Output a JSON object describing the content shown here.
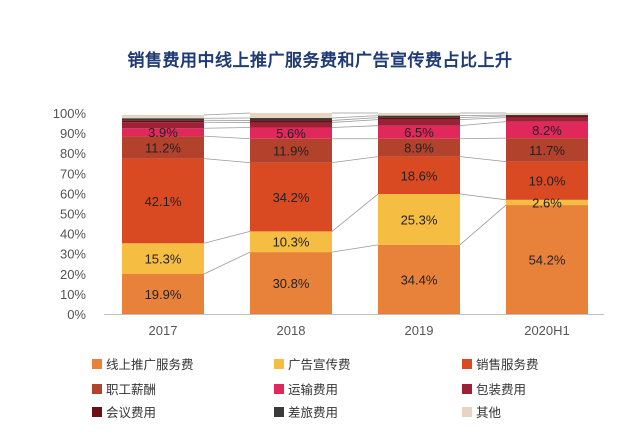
{
  "chart_data": {
    "type": "bar",
    "stacked": true,
    "percent": true,
    "title": "销售费用中线上推广服务费和广告宣传费占比上升",
    "categories": [
      "2017",
      "2018",
      "2019",
      "2020H1"
    ],
    "yticks": [
      "0%",
      "10%",
      "20%",
      "30%",
      "40%",
      "50%",
      "60%",
      "70%",
      "80%",
      "90%",
      "100%"
    ],
    "ylim": [
      0,
      100
    ],
    "grid": false,
    "legend_position": "bottom",
    "series": [
      {
        "name": "线上推广服务费",
        "color": "#e8823a",
        "values": [
          19.9,
          30.8,
          34.4,
          54.2
        ],
        "labels": [
          "19.9%",
          "30.8%",
          "34.4%",
          "54.2%"
        ]
      },
      {
        "name": "广告宣传费",
        "color": "#f5be42",
        "values": [
          15.3,
          10.3,
          25.3,
          2.6
        ],
        "labels": [
          "15.3%",
          "10.3%",
          "25.3%",
          "2.6%"
        ]
      },
      {
        "name": "销售服务费",
        "color": "#d94a22",
        "values": [
          42.1,
          34.2,
          18.6,
          19.0
        ],
        "labels": [
          "42.1%",
          "34.2%",
          "18.6%",
          "19.0%"
        ]
      },
      {
        "name": "职工薪酬",
        "color": "#b3422d",
        "values": [
          11.2,
          11.9,
          8.9,
          11.7
        ],
        "labels": [
          "11.2%",
          "11.9%",
          "8.9%",
          "11.7%"
        ]
      },
      {
        "name": "运输费用",
        "color": "#e0285a",
        "values": [
          3.9,
          5.6,
          6.5,
          8.2
        ],
        "labels": [
          "3.9%",
          "5.6%",
          "6.5%",
          "8.2%"
        ]
      },
      {
        "name": "包装费用",
        "color": "#9c2036",
        "values": [
          3.0,
          2.5,
          3.0,
          2.0
        ],
        "labels": []
      },
      {
        "name": "会议费用",
        "color": "#6b0f14",
        "values": [
          1.0,
          1.0,
          1.0,
          0.8
        ],
        "labels": []
      },
      {
        "name": "差旅费用",
        "color": "#3a3a3a",
        "values": [
          1.0,
          1.2,
          1.0,
          0.5
        ],
        "labels": []
      },
      {
        "name": "其他",
        "color": "#e8d5bf",
        "values": [
          1.6,
          2.5,
          1.3,
          1.0
        ],
        "labels": []
      }
    ]
  }
}
